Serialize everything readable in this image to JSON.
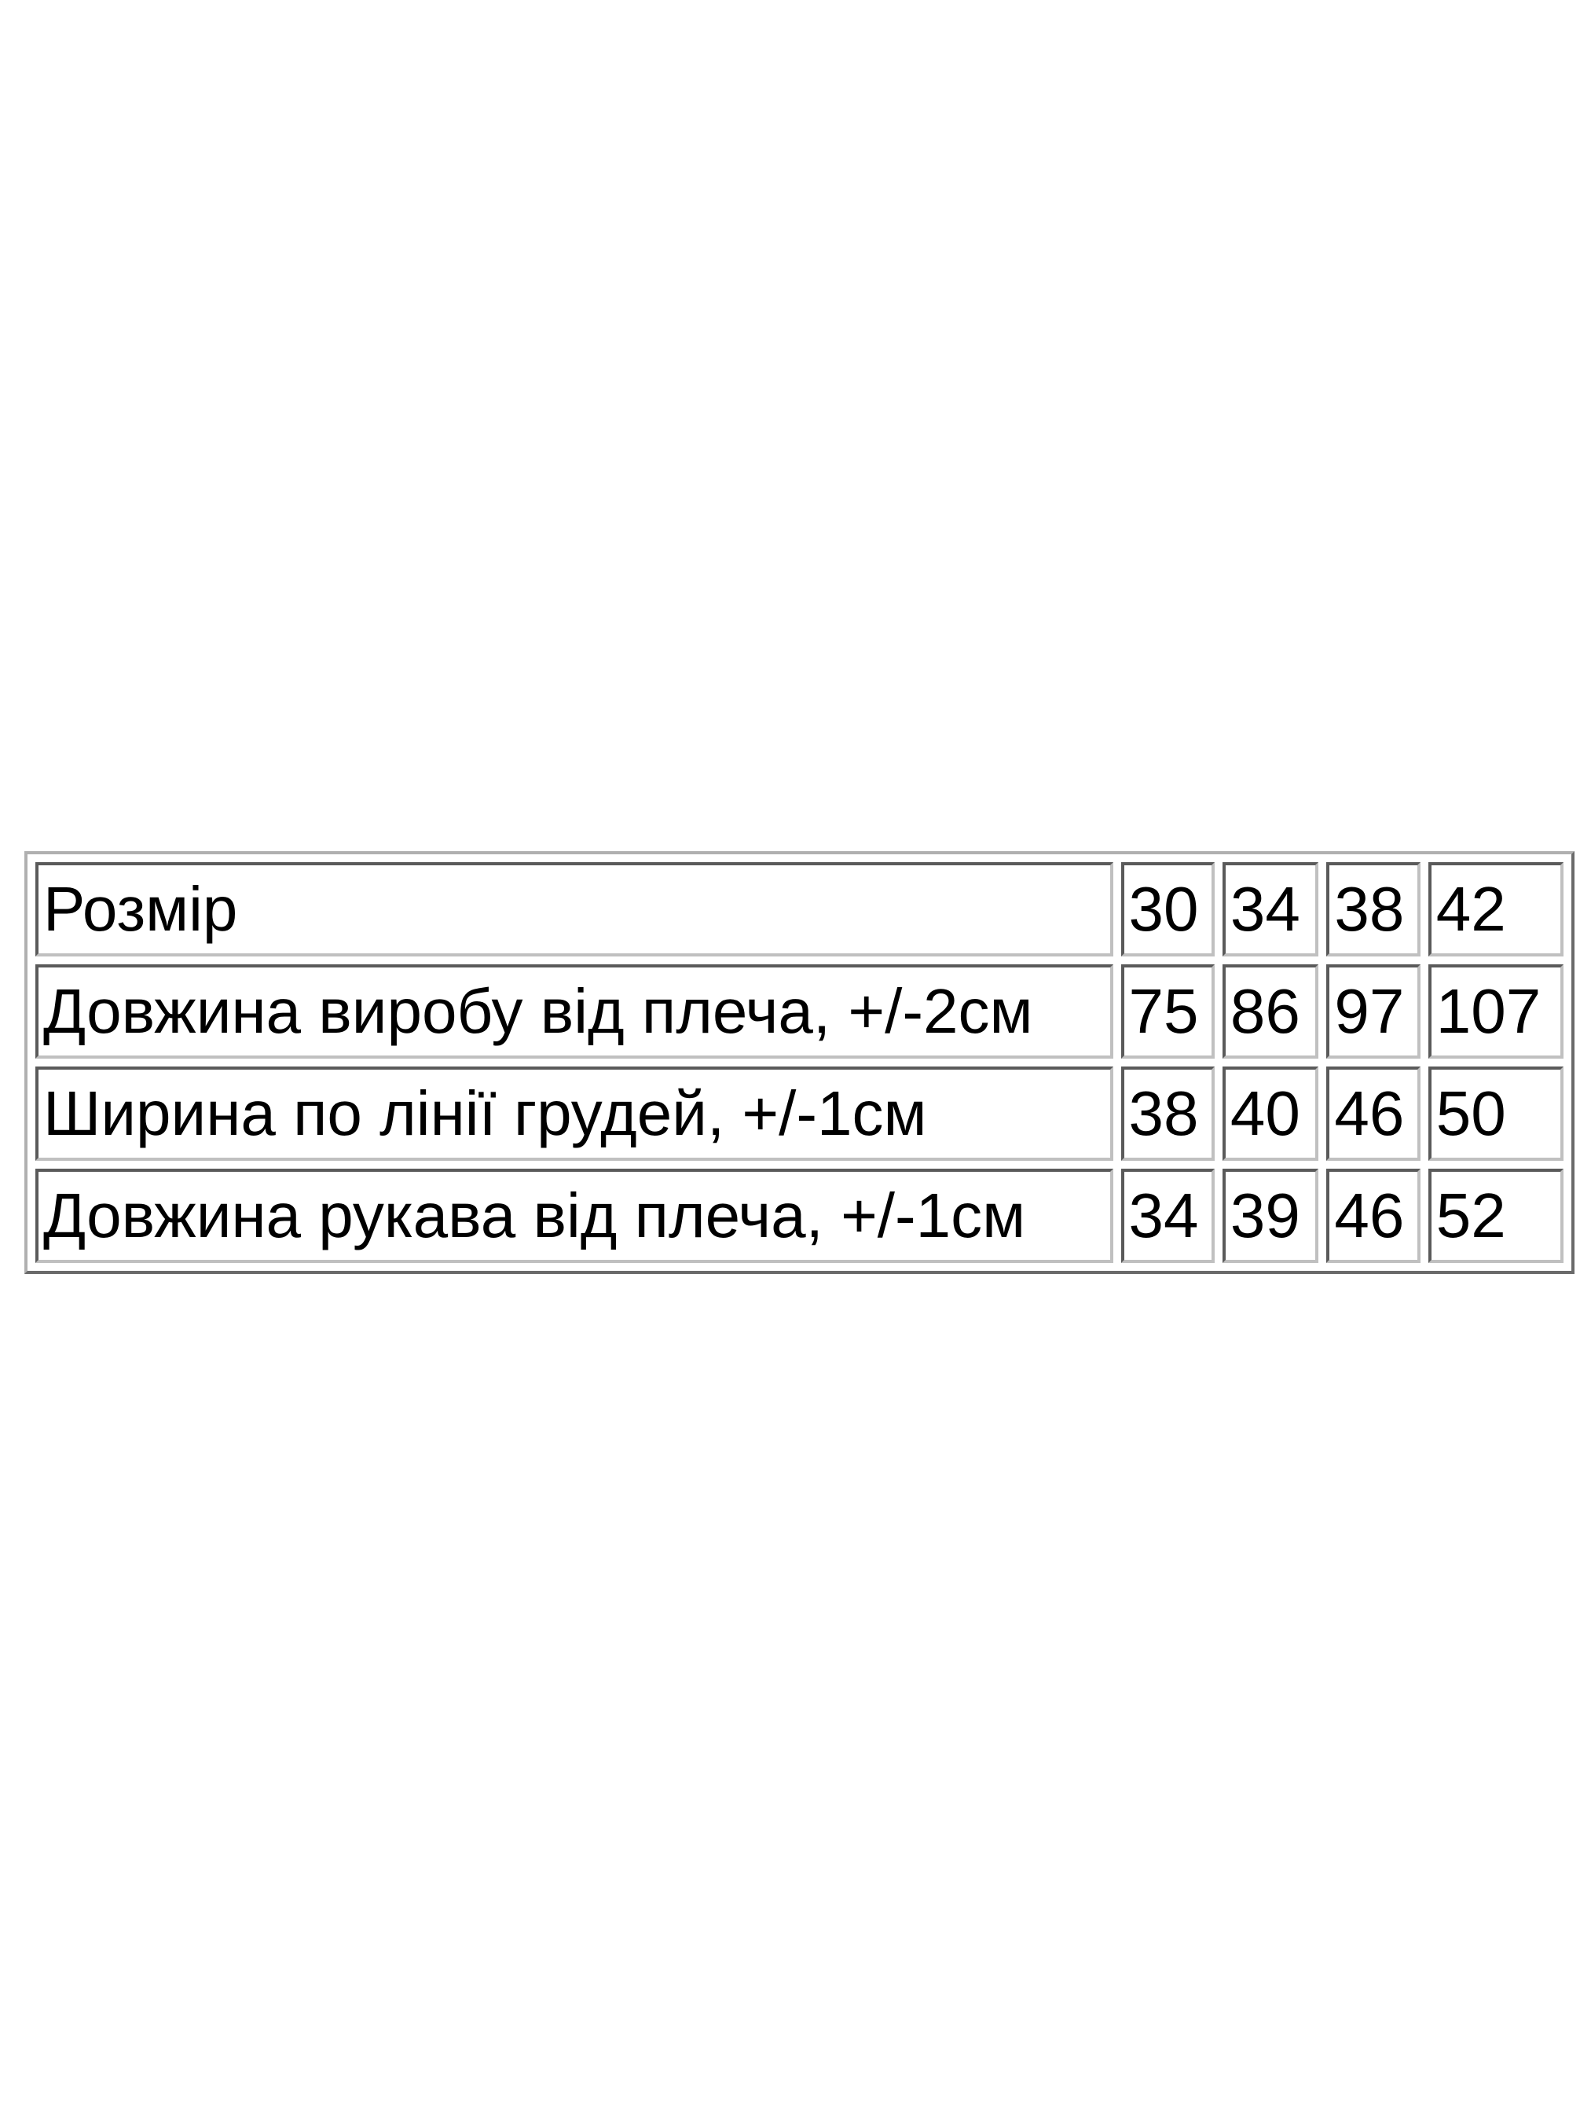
{
  "table": {
    "rows": [
      {
        "label": "Розмір",
        "values": [
          "30",
          "34",
          "38",
          "42"
        ]
      },
      {
        "label": "Довжина виробу від плеча, +/-2см",
        "values": [
          "75",
          "86",
          "97",
          "107"
        ]
      },
      {
        "label": "Ширина по лінії грудей, +/-1см",
        "values": [
          "38",
          "40",
          "46",
          "50"
        ]
      },
      {
        "label": "Довжина рукава від плеча, +/-1см",
        "values": [
          "34",
          "39",
          "46",
          "52"
        ]
      }
    ]
  }
}
